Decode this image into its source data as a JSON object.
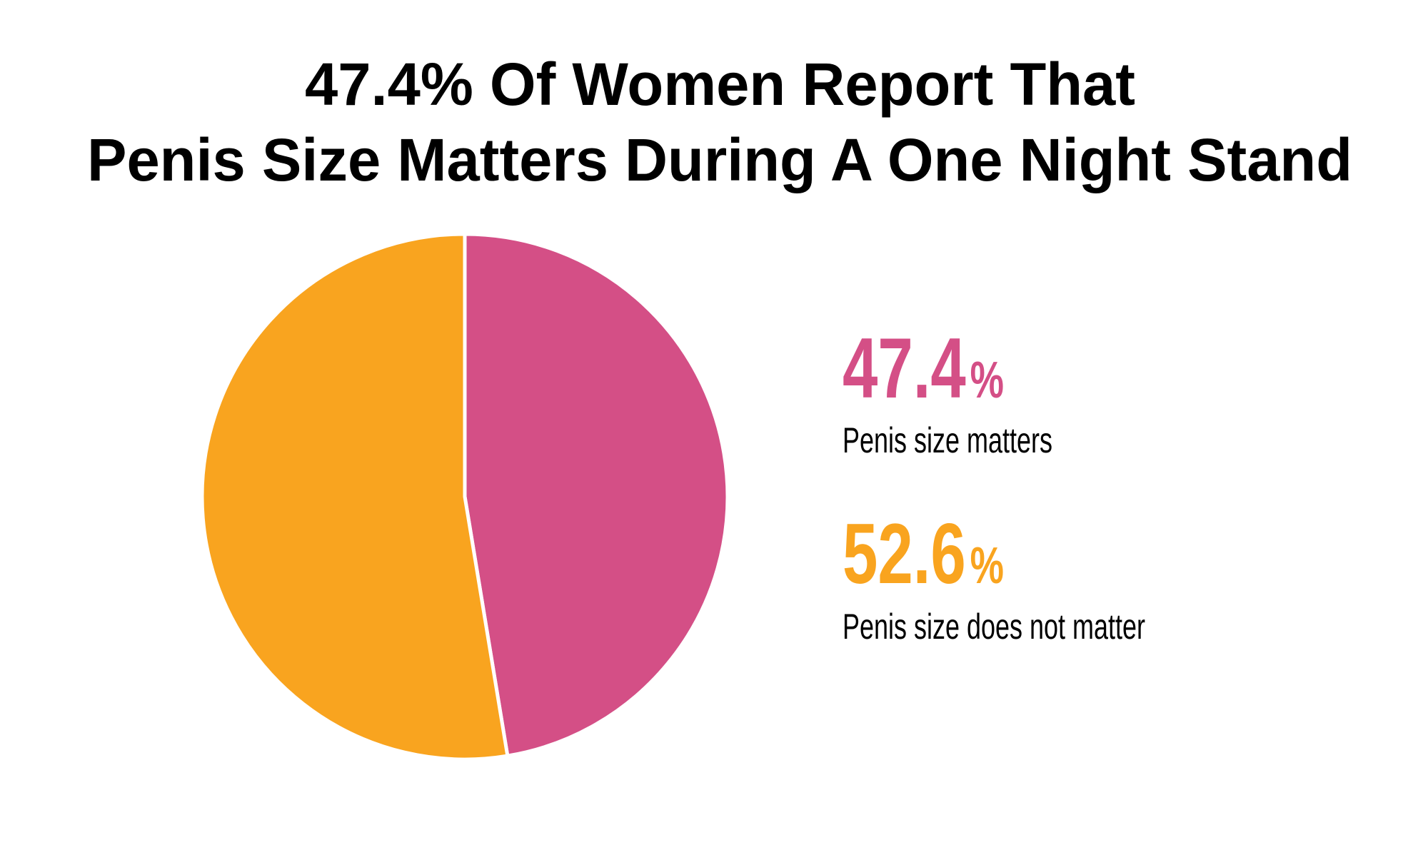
{
  "chart_data": {
    "type": "pie",
    "title_lines": [
      "47.4% Of Women Report That",
      "Penis Size Matters During A One Night Stand"
    ],
    "slices": [
      {
        "label": "Penis size matters",
        "value": 47.4,
        "display": "47.4",
        "color": "#D44F86"
      },
      {
        "label": "Penis size does not matter",
        "value": 52.6,
        "display": "52.6",
        "color": "#F9A41F"
      }
    ],
    "percent_sign": "%",
    "legend_placement": "right"
  }
}
